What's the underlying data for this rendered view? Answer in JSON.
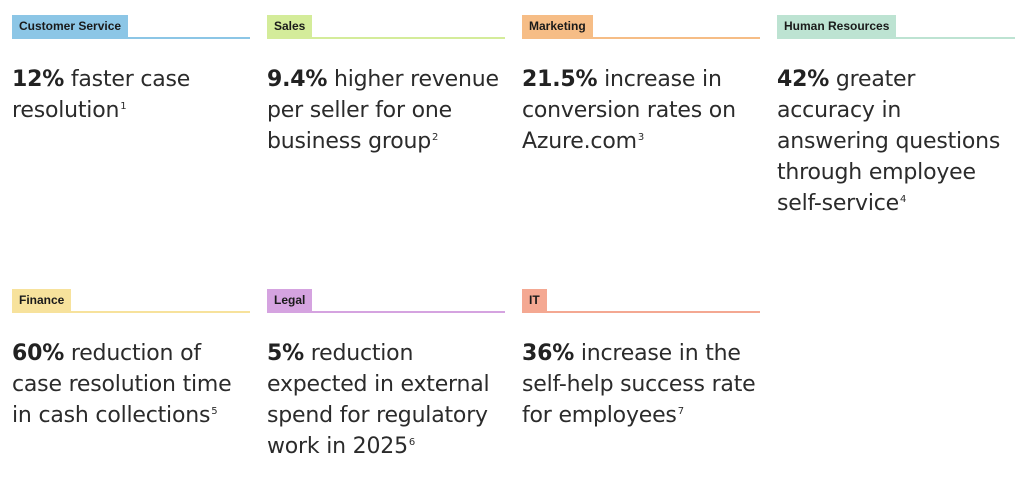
{
  "cards": [
    {
      "tag": "Customer Service",
      "color": "#8cc6e6",
      "value": "12%",
      "text": " faster case resolution",
      "footnote": "1"
    },
    {
      "tag": "Sales",
      "color": "#d4ec9a",
      "value": "9.4%",
      "text": " higher revenue per seller for one business group",
      "footnote": "2"
    },
    {
      "tag": "Marketing",
      "color": "#f6bd86",
      "value": "21.5%",
      "text": " increase in conversion rates on Azure.com",
      "footnote": "3"
    },
    {
      "tag": "Human Resources",
      "color": "#bde3d2",
      "value": "42%",
      "text": " greater accuracy in answering questions through employee self-service",
      "footnote": "4"
    },
    {
      "tag": "Finance",
      "color": "#f7e29c",
      "value": "60%",
      "text": " reduction of case resolution time in cash collections",
      "footnote": "5"
    },
    {
      "tag": "Legal",
      "color": "#d5a3e0",
      "value": "5%",
      "text": " reduction expected in external spend for regulatory work in 2025",
      "footnote": "6"
    },
    {
      "tag": "IT",
      "color": "#f4a892",
      "value": "36%",
      "text": " increase in the self-help success rate for employees",
      "footnote": "7"
    }
  ]
}
